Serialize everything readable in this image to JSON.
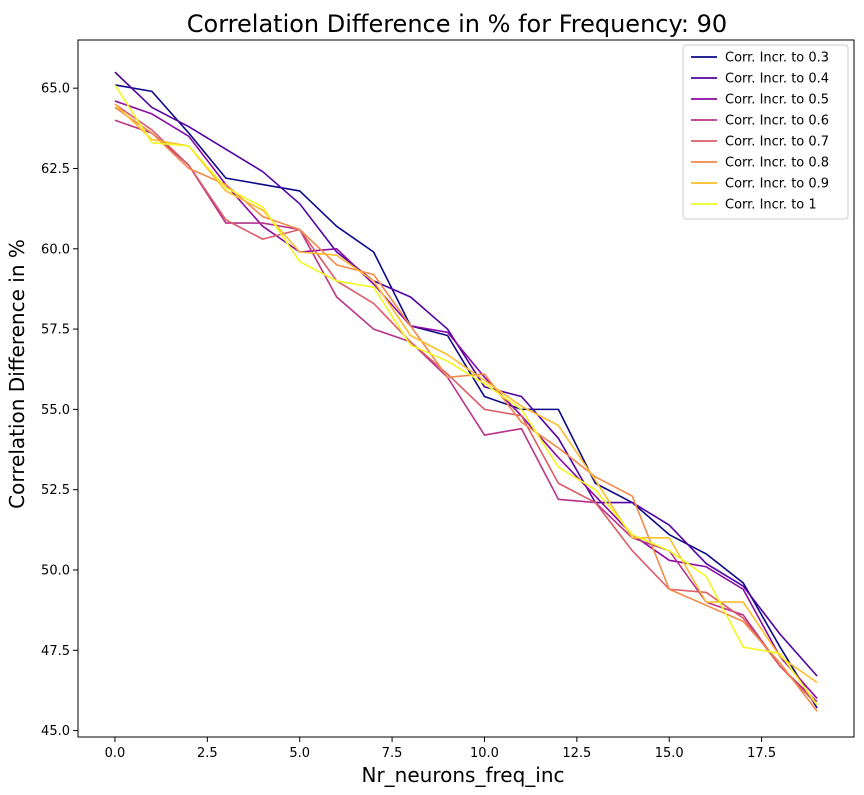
{
  "chart_data": {
    "type": "line",
    "title": "Correlation Difference in % for Frequency:  90",
    "xlabel": "Nr_neurons_freq_inc",
    "ylabel": "Correlation Difference in %",
    "xlim": [
      -1,
      20
    ],
    "ylim": [
      44.8,
      66.5
    ],
    "x": [
      0,
      1,
      2,
      3,
      4,
      5,
      6,
      7,
      8,
      9,
      10,
      11,
      12,
      13,
      14,
      15,
      16,
      17,
      18,
      19
    ],
    "xticks": [
      0.0,
      2.5,
      5.0,
      7.5,
      10.0,
      12.5,
      15.0,
      17.5
    ],
    "xtick_labels": [
      "0.0",
      "2.5",
      "5.0",
      "7.5",
      "10.0",
      "12.5",
      "15.0",
      "17.5"
    ],
    "yticks": [
      45.0,
      47.5,
      50.0,
      52.5,
      55.0,
      57.5,
      60.0,
      62.5,
      65.0
    ],
    "ytick_labels": [
      "45.0",
      "47.5",
      "50.0",
      "52.5",
      "55.0",
      "57.5",
      "60.0",
      "62.5",
      "65.0"
    ],
    "grid": false,
    "legend_position": "top-right",
    "series": [
      {
        "name": "Corr. Incr. to 0.3",
        "color": "#0d0887",
        "values": [
          65.1,
          64.9,
          63.6,
          62.2,
          62.0,
          61.8,
          60.7,
          59.9,
          57.6,
          57.3,
          55.4,
          55.0,
          55.0,
          52.7,
          52.1,
          51.1,
          50.5,
          49.6,
          47.6,
          45.7
        ]
      },
      {
        "name": "Corr. Incr. to 0.4",
        "color": "#5302a3",
        "values": [
          65.5,
          64.4,
          63.8,
          63.1,
          62.4,
          61.4,
          59.9,
          59.0,
          58.5,
          57.5,
          55.7,
          55.4,
          54.1,
          52.1,
          52.1,
          51.4,
          50.2,
          49.5,
          48.0,
          46.7
        ]
      },
      {
        "name": "Corr. Incr. to 0.5",
        "color": "#8b0aa5",
        "values": [
          64.6,
          64.2,
          63.5,
          62.0,
          60.7,
          59.9,
          60.0,
          58.9,
          57.6,
          57.4,
          56.0,
          54.8,
          53.5,
          52.3,
          51.1,
          50.3,
          50.1,
          49.4,
          47.3,
          46.0
        ]
      },
      {
        "name": "Corr. Incr. to 0.6",
        "color": "#b83289",
        "values": [
          64.0,
          63.6,
          62.6,
          60.8,
          60.8,
          60.6,
          58.5,
          57.5,
          57.1,
          56.0,
          54.2,
          54.4,
          52.2,
          52.1,
          51.0,
          50.6,
          49.0,
          48.6,
          47.0,
          45.9
        ]
      },
      {
        "name": "Corr. Incr. to 0.7",
        "color": "#db5c68",
        "values": [
          64.5,
          63.7,
          62.6,
          60.9,
          60.3,
          60.6,
          59.0,
          58.3,
          57.1,
          56.1,
          55.0,
          54.8,
          52.7,
          52.1,
          50.6,
          49.4,
          49.3,
          48.5,
          47.0,
          45.8
        ]
      },
      {
        "name": "Corr. Incr. to 0.8",
        "color": "#f48849",
        "values": [
          64.4,
          63.6,
          62.5,
          62.0,
          61.0,
          60.6,
          59.5,
          59.2,
          57.6,
          56.0,
          56.1,
          54.6,
          53.8,
          52.9,
          52.3,
          49.4,
          48.9,
          48.4,
          47.1,
          45.6
        ]
      },
      {
        "name": "Corr. Incr. to 0.9",
        "color": "#febd2a",
        "values": [
          64.5,
          63.4,
          63.2,
          61.8,
          61.2,
          59.9,
          59.8,
          59.0,
          57.3,
          56.7,
          55.9,
          55.1,
          54.5,
          52.8,
          51.0,
          51.0,
          49.0,
          49.0,
          47.3,
          46.5
        ]
      },
      {
        "name": "Corr. Incr. to 1",
        "color": "#f0f921",
        "values": [
          65.1,
          63.3,
          63.2,
          61.9,
          61.3,
          59.6,
          59.0,
          58.8,
          57.0,
          56.5,
          55.8,
          55.0,
          53.2,
          52.5,
          51.1,
          50.6,
          49.8,
          47.6,
          47.4,
          45.8
        ]
      }
    ]
  }
}
